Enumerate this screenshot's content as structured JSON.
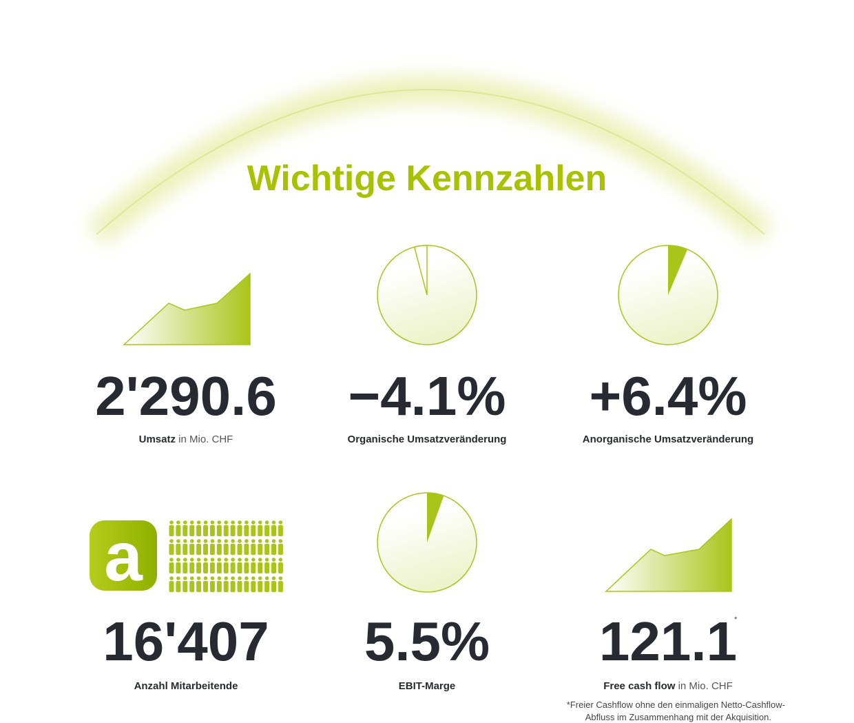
{
  "title": "Wichtige Kennzahlen",
  "kpis": [
    {
      "value": "2'290.6",
      "label_bold": "Umsatz",
      "label_rest": "in Mio. CHF"
    },
    {
      "value": "−4.1%",
      "label_bold": "Organische Umsatzveränderung"
    },
    {
      "value": "+6.4%",
      "label_bold": "Anorganische Umsatzveränderung"
    },
    {
      "value": "16'407",
      "label_bold": "Anzahl Mitarbeitende",
      "logo_letter": "a"
    },
    {
      "value": "5.5%",
      "label_bold": "EBIT-Marge"
    },
    {
      "value": "121.1",
      "note_marker": "*",
      "label_bold": "Free cash flow",
      "label_rest": "in Mio. CHF"
    }
  ],
  "footnote": [
    "*Freier Cashflow ohne den einmaligen Netto-Cashflow-",
    "Abfluss im Zusammenhang mit der Akquisition."
  ]
}
